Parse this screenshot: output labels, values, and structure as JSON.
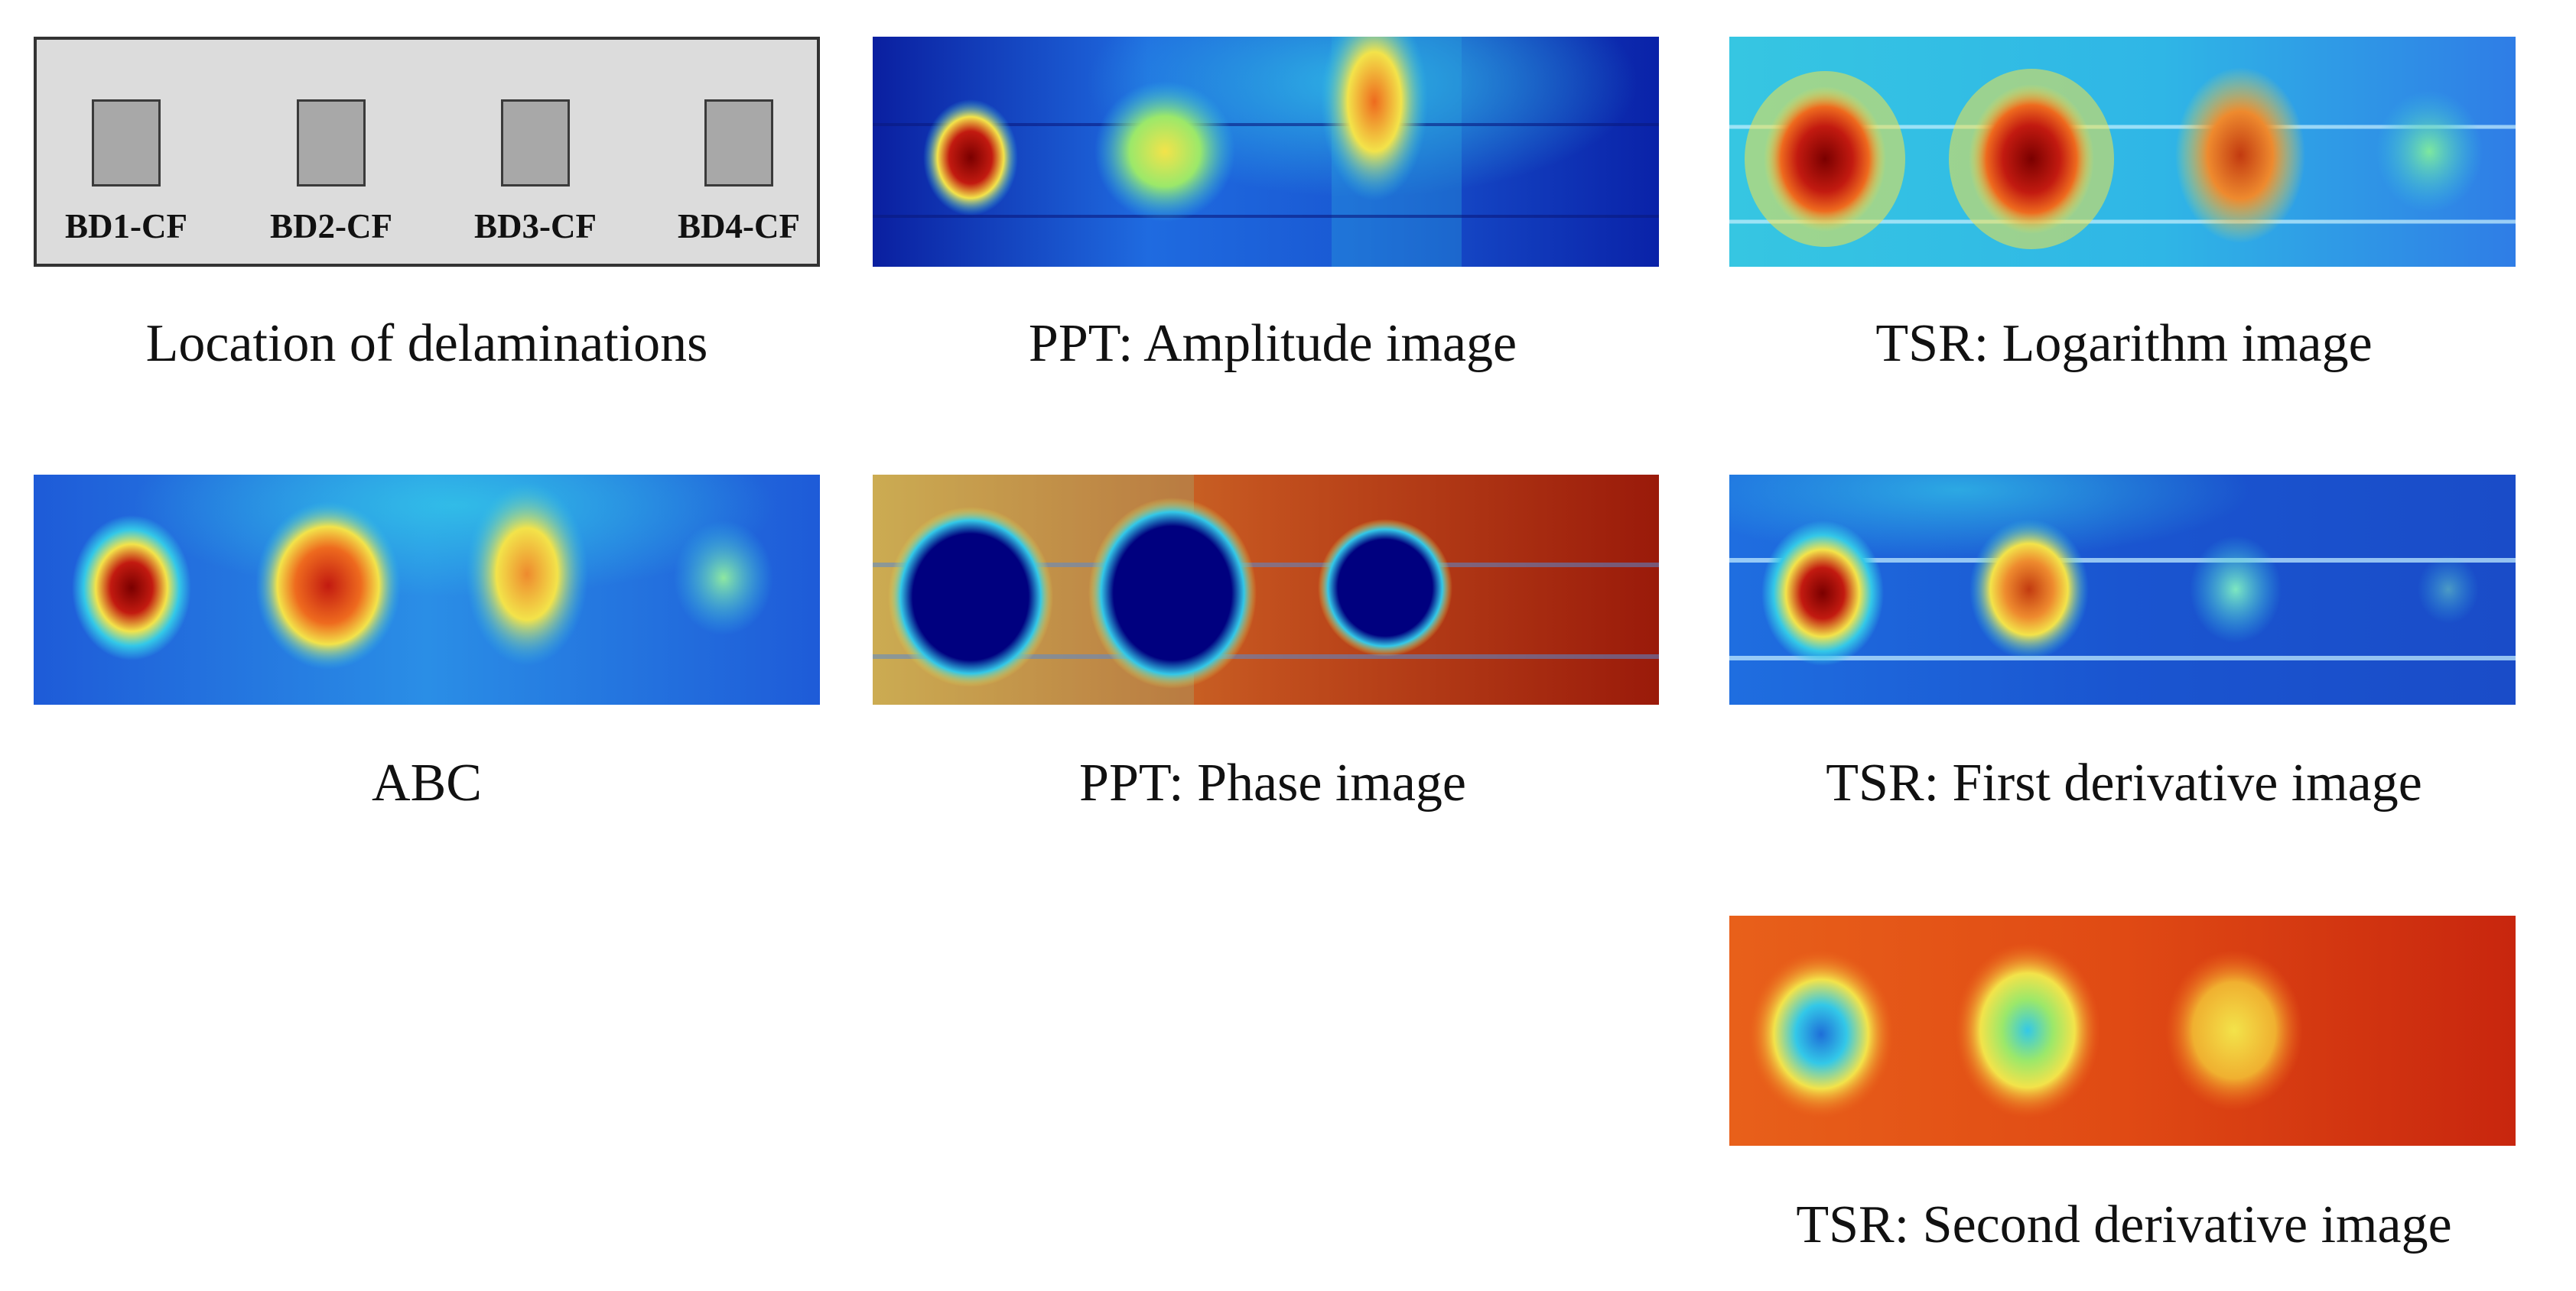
{
  "captions": {
    "location": "Location of delaminations",
    "ppt_amplitude": "PPT: Amplitude image",
    "tsr_logarithm": "TSR: Logarithm image",
    "abc": "ABC",
    "ppt_phase": "PPT: Phase image",
    "tsr_first_derivative": "TSR: First derivative image",
    "tsr_second_derivative": "TSR: Second derivative image"
  },
  "delaminations": [
    {
      "label": "BD1-CF"
    },
    {
      "label": "BD2-CF"
    },
    {
      "label": "BD3-CF"
    },
    {
      "label": "BD4-CF"
    }
  ],
  "colors": {
    "jet_dark_blue": "#00007f",
    "jet_blue": "#1e5bd8",
    "jet_cyan": "#33c8e8",
    "jet_yellow": "#f3e34a",
    "jet_orange": "#ee6a1e",
    "jet_red": "#c21a10",
    "jet_dark_red": "#7a0000",
    "specimen_grey": "#dcdcdc",
    "delamination_grey": "#a8a8a8"
  }
}
